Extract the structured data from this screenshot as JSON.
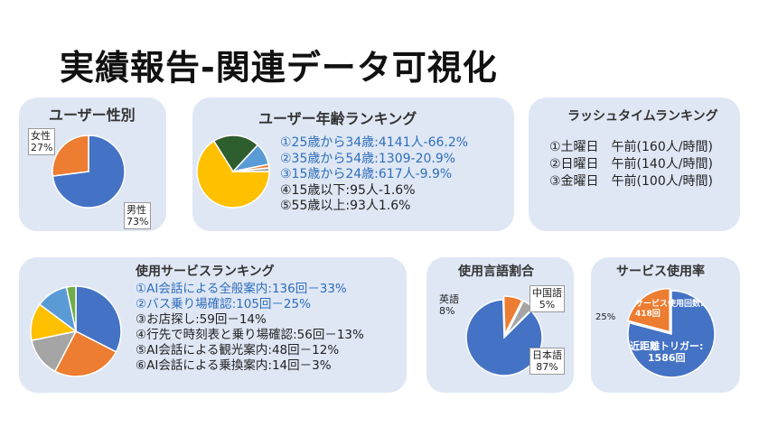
{
  "page_title": "実績報告-関連データ可視化",
  "colors": {
    "panel_bg": "#dfe7f5",
    "highlight_text": "#2f6eba"
  },
  "chart_data": [
    {
      "id": "gender",
      "type": "pie",
      "title": "ユーザー性別",
      "slices": [
        {
          "name": "男性",
          "value": 73,
          "label": "73%",
          "color": "#4472c4"
        },
        {
          "name": "女性",
          "value": 27,
          "label": "27%",
          "color": "#ed7d31"
        }
      ]
    },
    {
      "id": "age",
      "type": "pie",
      "title": "ユーザー年齢ランキング",
      "slices": [
        {
          "name": "25歳から34歳",
          "value": 66.2,
          "color": "#ffc000"
        },
        {
          "name": "35歳から54歳",
          "value": 20.9,
          "color": "#2e5d2e"
        },
        {
          "name": "15歳から24歳",
          "value": 9.9,
          "color": "#5b9bd5"
        },
        {
          "name": "15歳以下",
          "value": 1.6,
          "color": "#ed7d31"
        },
        {
          "name": "55歳以上",
          "value": 1.6,
          "color": "#a5a5a5"
        }
      ],
      "entries": [
        {
          "text": "①25歳から34歳:4141人-66.2%",
          "highlight": true
        },
        {
          "text": "②35歳から54歳:1309-20.9%",
          "highlight": true
        },
        {
          "text": "③15歳から24歳:617人-9.9%",
          "highlight": true
        },
        {
          "text": "④15歳以下:95人-1.6%",
          "highlight": false
        },
        {
          "text": "⑤55歳以上:93人1.6%",
          "highlight": false
        }
      ]
    },
    {
      "id": "rush",
      "type": "table",
      "title": "ラッシュタイムランキング",
      "rows": [
        {
          "text": "①土曜日　午前(160人/時間)",
          "value": 160
        },
        {
          "text": "②日曜日　午前(140人/時間)",
          "value": 140
        },
        {
          "text": "③金曜日　午前(100人/時間)",
          "value": 100
        }
      ]
    },
    {
      "id": "services",
      "type": "pie",
      "title": "使用サービスランキング",
      "slices": [
        {
          "name": "AI会話による全般案内",
          "value": 136,
          "color": "#4472c4"
        },
        {
          "name": "バス乗り場確認",
          "value": 105,
          "color": "#ed7d31"
        },
        {
          "name": "お店探し",
          "value": 59,
          "color": "#a5a5a5"
        },
        {
          "name": "行先で時刻表と乗り場確認",
          "value": 56,
          "color": "#ffc000"
        },
        {
          "name": "AI会話による観光案内",
          "value": 48,
          "color": "#5b9bd5"
        },
        {
          "name": "AI会話による乗換案内",
          "value": 14,
          "color": "#70ad47"
        }
      ],
      "entries": [
        {
          "text": "①AI会話による全般案内:136回－33%",
          "highlight": true
        },
        {
          "text": "②バス乗り場確認:105回－25%",
          "highlight": true
        },
        {
          "text": "③お店探し:59回－14%",
          "highlight": false
        },
        {
          "text": "④行先で時刻表と乗り場確認:56回－13%",
          "highlight": false
        },
        {
          "text": "⑤AI会話による観光案内:48回－12%",
          "highlight": false
        },
        {
          "text": "⑥AI会話による乗換案内:14回－3%",
          "highlight": false
        }
      ]
    },
    {
      "id": "language",
      "type": "pie",
      "title": "使用言語割合",
      "slices": [
        {
          "name": "日本語",
          "value": 87,
          "label": "87%",
          "color": "#4472c4"
        },
        {
          "name": "英語",
          "value": 8,
          "label": "8%",
          "color": "#ed7d31"
        },
        {
          "name": "中国語",
          "value": 5,
          "label": "5%",
          "color": "#a5a5a5"
        }
      ]
    },
    {
      "id": "usage_rate",
      "type": "pie",
      "title": "サービス使用率",
      "slices": [
        {
          "name": "近距離トリガー:",
          "value": 1586,
          "value_label": "1586回",
          "color": "#4472c4"
        },
        {
          "name": "サービス使用回数:",
          "value": 418,
          "value_label": "418回",
          "color": "#ed7d31"
        }
      ],
      "outside_label": "25%"
    }
  ]
}
